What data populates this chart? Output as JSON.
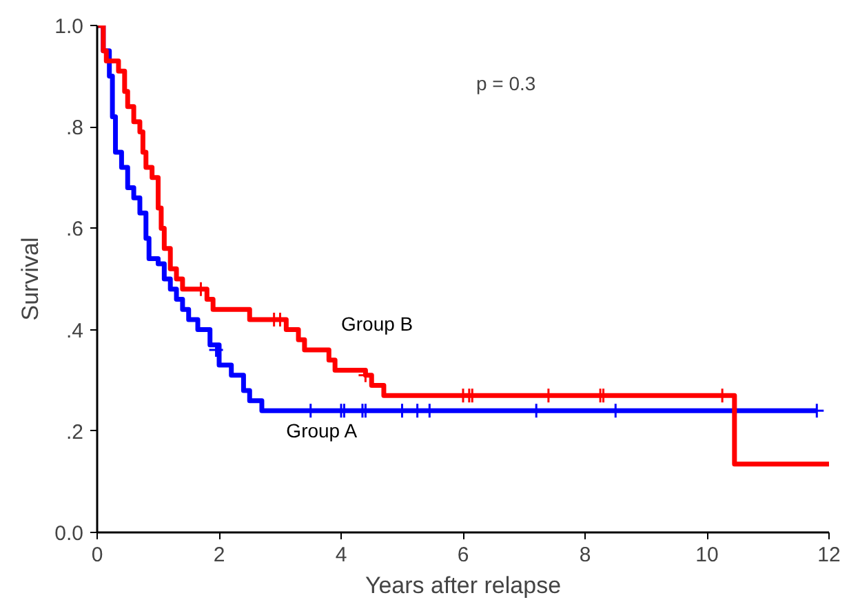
{
  "chart_data": {
    "type": "step",
    "xlabel": "Years after relapse",
    "ylabel": "Survival",
    "xlim": [
      0,
      12
    ],
    "ylim": [
      0,
      1
    ],
    "xticks": [
      0,
      2,
      4,
      6,
      8,
      10,
      12
    ],
    "yticks": [
      {
        "value": 0,
        "label": "0.0"
      },
      {
        "value": 0.2,
        "label": ".2"
      },
      {
        "value": 0.4,
        "label": ".4"
      },
      {
        "value": 0.6,
        "label": ".6"
      },
      {
        "value": 0.8,
        "label": ".8"
      },
      {
        "value": 1,
        "label": "1.0"
      }
    ],
    "grid": false,
    "marker": "none",
    "line_style": "solid",
    "annotations": [
      "p = 0.3"
    ],
    "series": [
      {
        "name": "Group A",
        "color": "#0000ff",
        "x": [
          0,
          0.1,
          0.2,
          0.25,
          0.3,
          0.4,
          0.5,
          0.6,
          0.7,
          0.8,
          0.85,
          1.0,
          1.1,
          1.2,
          1.3,
          1.4,
          1.5,
          1.65,
          1.85,
          2.0,
          2.2,
          2.4,
          2.5,
          2.7,
          11.8
        ],
        "values": [
          1.0,
          0.95,
          0.9,
          0.82,
          0.75,
          0.72,
          0.68,
          0.66,
          0.63,
          0.58,
          0.54,
          0.53,
          0.5,
          0.48,
          0.46,
          0.44,
          0.42,
          0.4,
          0.37,
          0.33,
          0.31,
          0.28,
          0.26,
          0.24,
          0.24
        ]
      },
      {
        "name": "Group B",
        "color": "#ff0000",
        "x": [
          0,
          0.1,
          0.15,
          0.35,
          0.45,
          0.5,
          0.6,
          0.7,
          0.75,
          0.8,
          0.9,
          1.0,
          1.05,
          1.1,
          1.2,
          1.3,
          1.4,
          1.8,
          1.9,
          2.5,
          3.1,
          3.3,
          3.4,
          3.8,
          3.9,
          4.4,
          4.5,
          4.7,
          10.45,
          12
        ],
        "values": [
          1.0,
          0.95,
          0.93,
          0.91,
          0.87,
          0.84,
          0.81,
          0.79,
          0.75,
          0.72,
          0.7,
          0.64,
          0.6,
          0.56,
          0.52,
          0.5,
          0.48,
          0.46,
          0.44,
          0.42,
          0.4,
          0.38,
          0.36,
          0.34,
          0.32,
          0.31,
          0.29,
          0.27,
          0.135,
          0.135
        ]
      },
      {
        "type": "scatter",
        "marker": "cross",
        "color": "#0000ff",
        "x": [
          1.95,
          3.5,
          4.0,
          4.05,
          4.35,
          4.4,
          5.0,
          5.25,
          5.45,
          7.2,
          8.5,
          11.8
        ],
        "values": [
          0.36,
          0.24,
          0.24,
          0.24,
          0.24,
          0.24,
          0.24,
          0.24,
          0.24,
          0.24,
          0.24,
          0.24
        ]
      },
      {
        "type": "scatter",
        "marker": "cross",
        "color": "#ff0000",
        "x": [
          1.7,
          2.9,
          3.0,
          4.4,
          6.0,
          6.1,
          6.15,
          7.4,
          8.25,
          8.3,
          10.25
        ],
        "values": [
          0.48,
          0.42,
          0.42,
          0.31,
          0.27,
          0.27,
          0.27,
          0.27,
          0.27,
          0.27,
          0.27
        ]
      }
    ]
  }
}
